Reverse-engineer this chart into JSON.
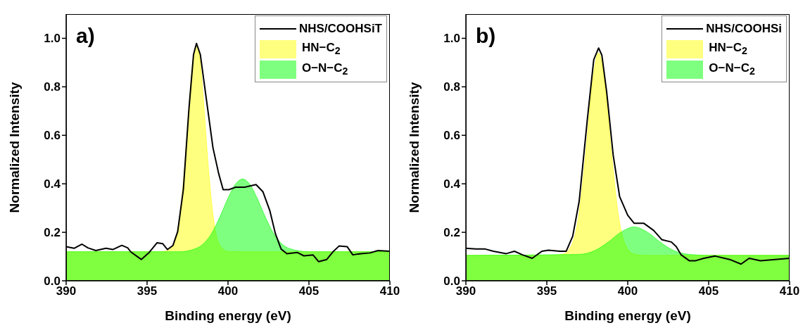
{
  "chart_data": [
    {
      "type": "line",
      "title": "a)",
      "xlabel": "Binding energy (eV)",
      "ylabel": "Normalized Intensity",
      "xlim": [
        390,
        410
      ],
      "xticks": [
        390,
        395,
        400,
        405,
        410
      ],
      "ylim": [
        0,
        1.1
      ],
      "yticks": [
        {
          "value": 0,
          "label": "0.0"
        },
        {
          "value": 0.2,
          "label": "0.2"
        },
        {
          "value": 0.4,
          "label": "0.4"
        },
        {
          "value": 0.6,
          "label": "0.6"
        },
        {
          "value": 0.8,
          "label": "0.8"
        },
        {
          "value": 1,
          "label": "1.0"
        }
      ],
      "legend": "top right",
      "series": [
        {
          "name": "NHS/COOHSiT",
          "type": "line",
          "color": "#000000",
          "x": [
            390,
            390.49,
            390.98,
            391.34,
            391.83,
            392.46,
            392.88,
            393.44,
            393.8,
            394.0,
            394.64,
            395.13,
            395.62,
            395.97,
            396.26,
            396.6,
            396.89,
            397.24,
            397.59,
            397.87,
            398.05,
            398.29,
            398.64,
            399.07,
            399.42,
            399.7,
            400.05,
            400.47,
            401.03,
            401.73,
            402.16,
            402.58,
            402.93,
            403.28,
            403.64,
            404.27,
            404.69,
            405.25,
            405.6,
            406.1,
            406.52,
            406.87,
            407.36,
            407.71,
            408.21,
            408.77,
            409.26,
            410
          ],
          "values": [
            0.141,
            0.134,
            0.151,
            0.136,
            0.125,
            0.134,
            0.129,
            0.146,
            0.136,
            0.119,
            0.088,
            0.117,
            0.157,
            0.153,
            0.129,
            0.146,
            0.203,
            0.376,
            0.712,
            0.933,
            0.979,
            0.933,
            0.76,
            0.549,
            0.443,
            0.376,
            0.376,
            0.386,
            0.386,
            0.397,
            0.367,
            0.29,
            0.194,
            0.131,
            0.112,
            0.117,
            0.103,
            0.107,
            0.079,
            0.088,
            0.122,
            0.144,
            0.141,
            0.107,
            0.112,
            0.115,
            0.125,
            0.122
          ]
        },
        {
          "name": "HN−C$_{2}$",
          "type": "area",
          "color": "#ffff00",
          "x": [
            390,
            395,
            396,
            396.5,
            397,
            397.3,
            397.6,
            397.8,
            398.05,
            398.3,
            398.5,
            398.8,
            399.1,
            399.5,
            400,
            401,
            410
          ],
          "values": [
            0.12,
            0.12,
            0.121,
            0.136,
            0.258,
            0.456,
            0.728,
            0.89,
            0.97,
            0.89,
            0.728,
            0.456,
            0.258,
            0.146,
            0.121,
            0.12,
            0.12
          ]
        },
        {
          "name": "O−N−C$_{2}$",
          "type": "area",
          "color": "#00ff00",
          "x": [
            390,
            397,
            398,
            398.5,
            399,
            399.5,
            400,
            400.5,
            400.9,
            401.3,
            401.8,
            402.3,
            402.8,
            403.3,
            403.8,
            405,
            410
          ],
          "values": [
            0.12,
            0.12,
            0.133,
            0.154,
            0.197,
            0.264,
            0.341,
            0.402,
            0.42,
            0.402,
            0.341,
            0.264,
            0.197,
            0.154,
            0.133,
            0.12,
            0.12
          ]
        }
      ]
    },
    {
      "type": "line",
      "title": "b)",
      "xlabel": "Binding energy (eV)",
      "ylabel": "Normalized Intensity",
      "xlim": [
        390,
        410
      ],
      "xticks": [
        390,
        395,
        400,
        405,
        410
      ],
      "ylim": [
        0,
        1.1
      ],
      "yticks": [
        {
          "value": 0,
          "label": "0.0"
        },
        {
          "value": 0.2,
          "label": "0.2"
        },
        {
          "value": 0.4,
          "label": "0.4"
        },
        {
          "value": 0.6,
          "label": "0.6"
        },
        {
          "value": 0.8,
          "label": "0.8"
        },
        {
          "value": 1,
          "label": "1.0"
        }
      ],
      "legend": "top right",
      "series": [
        {
          "name": "NHS/COOHSi",
          "type": "line",
          "color": "#000000",
          "x": [
            390,
            390.6,
            391.2,
            391.7,
            392.5,
            393.0,
            393.5,
            394.1,
            394.7,
            395.1,
            395.8,
            396.2,
            396.6,
            397.0,
            397.5,
            397.9,
            398.2,
            398.4,
            398.7,
            399.1,
            399.5,
            400.0,
            400.4,
            401.0,
            401.6,
            402.1,
            402.7,
            403.0,
            403.3,
            403.8,
            404.2,
            404.7,
            405.4,
            406.3,
            407.0,
            407.5,
            408.2,
            409.1,
            410
          ],
          "values": [
            0.134,
            0.131,
            0.131,
            0.122,
            0.112,
            0.122,
            0.107,
            0.093,
            0.122,
            0.126,
            0.122,
            0.122,
            0.184,
            0.328,
            0.663,
            0.912,
            0.96,
            0.931,
            0.778,
            0.519,
            0.347,
            0.27,
            0.237,
            0.237,
            0.208,
            0.17,
            0.16,
            0.141,
            0.107,
            0.083,
            0.083,
            0.093,
            0.102,
            0.088,
            0.069,
            0.093,
            0.083,
            0.088,
            0.093
          ]
        },
        {
          "name": "HN−C$_{2}$",
          "type": "area",
          "color": "#ffff00",
          "x": [
            390,
            395,
            396,
            396.5,
            397,
            397.4,
            397.8,
            398.2,
            398.6,
            399,
            399.4,
            399.9,
            400.4,
            401,
            410
          ],
          "values": [
            0.105,
            0.105,
            0.11,
            0.142,
            0.281,
            0.523,
            0.807,
            0.94,
            0.807,
            0.523,
            0.281,
            0.142,
            0.11,
            0.105,
            0.105
          ]
        },
        {
          "name": "O−N−C$_{2}$",
          "type": "area",
          "color": "#00ff00",
          "x": [
            390,
            397,
            398,
            398.8,
            399.5,
            400.4,
            401.3,
            402,
            402.8,
            403.8,
            405,
            410
          ],
          "values": [
            0.105,
            0.109,
            0.126,
            0.16,
            0.197,
            0.222,
            0.197,
            0.16,
            0.126,
            0.109,
            0.105,
            0.105
          ]
        }
      ]
    }
  ]
}
